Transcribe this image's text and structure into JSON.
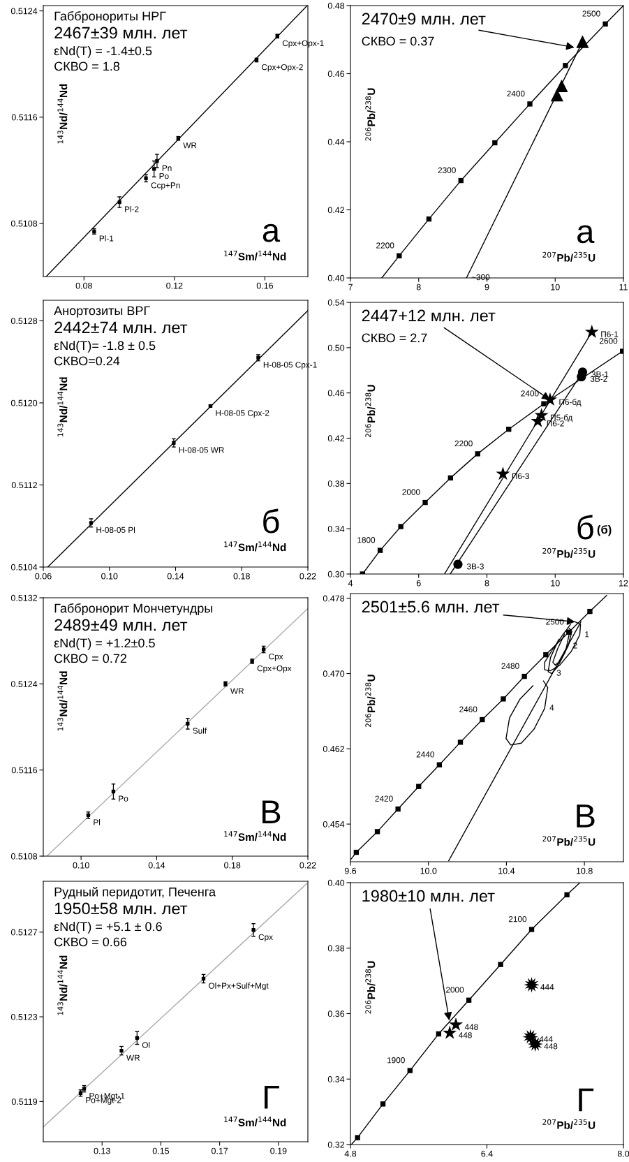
{
  "chart_data": [
    {
      "type": "scatter",
      "title": "Габбронориты НРГ",
      "xlabel": "$^{147}$Sm/$^{144}$Nd",
      "ylabel": "$^{143}$Nd/$^{144}$Nd",
      "xlim": [
        0.062,
        0.179
      ],
      "ylim": [
        0.5104,
        0.51244
      ],
      "xticks": [
        0.08,
        0.12,
        0.16
      ],
      "yticks": [
        0.5108,
        0.5116,
        0.5124
      ],
      "series": [
        {
          "type": "line",
          "color": "#000000",
          "marker": "none",
          "x": [
            0.0633,
            0.1787
          ],
          "values": [
            0.5104,
            0.51244
          ]
        },
        {
          "color": "#000000",
          "marker": "square",
          "x": [
            0.0845,
            0.0957,
            0.1074,
            0.111,
            0.1123,
            0.1217,
            0.1563,
            0.1655
          ],
          "values": [
            0.51074,
            0.51096,
            0.51114,
            0.51121,
            0.51127,
            0.51144,
            0.51203,
            0.51221
          ],
          "errors": [
            2e-05,
            4e-05,
            2.7e-05,
            6e-05,
            5e-05,
            1.4e-05,
            1.4e-05,
            1.4e-05
          ]
        }
      ],
      "annotations": [
        "2467±39 млн. лет",
        "εNd(T) = -1.4±0.5",
        "СКВО = 1.8",
        {
          "text": "Cpx+Opx-1",
          "x": 0.1655,
          "y": 0.51221
        },
        {
          "text": "Cpx+Opx-2",
          "x": 0.1563,
          "y": 0.51203
        },
        {
          "text": "WR",
          "x": 0.1217,
          "y": 0.51144
        },
        {
          "text": "Pn",
          "x": 0.1123,
          "y": 0.51127
        },
        {
          "text": "Po",
          "x": 0.111,
          "y": 0.51121
        },
        {
          "text": "Ccp+Pn",
          "x": 0.1074,
          "y": 0.51114
        },
        {
          "text": "Pl-2",
          "x": 0.0957,
          "y": 0.51096
        },
        {
          "text": "Pl-1",
          "x": 0.0845,
          "y": 0.51074
        },
        "а"
      ]
    },
    {
      "type": "scatter",
      "xlabel": "$^{207}$Pb/$^{235}$U",
      "ylabel": "$^{206}$Pb/$^{238}$U",
      "xlim": [
        7,
        11
      ],
      "ylim": [
        0.4,
        0.48
      ],
      "xticks": [
        7,
        8,
        9,
        10,
        11
      ],
      "yticks": [
        {
          "value": 0.4,
          "label": "0.40"
        },
        0.42,
        0.44,
        0.46,
        0.48
      ],
      "series": [
        {
          "type": "line",
          "color": "#000000",
          "marker": "none",
          "x": [
            7.459,
            7.714,
            8.15,
            8.619,
            9.116,
            9.629,
            10.15,
            10.735,
            11
          ],
          "values": [
            0.4,
            0.4065,
            0.4173,
            0.4286,
            0.4397,
            0.4511,
            0.4624,
            0.4746,
            0.48
          ]
        },
        {
          "color": "#000000",
          "marker": "square",
          "x": [
            7.714,
            8.15,
            8.619,
            9.116,
            9.629,
            10.15,
            10.735
          ],
          "values": [
            0.4065,
            0.4173,
            0.4286,
            0.4397,
            0.4511,
            0.4624,
            0.4746
          ]
        },
        {
          "type": "line",
          "color": "#000000",
          "marker": "none",
          "x": [
            8.7,
            10.418
          ],
          "values": [
            0.4,
            0.4701
          ]
        },
        {
          "color": "#000000",
          "marker": "triangle",
          "x": [
            10.027,
            10.095,
            10.401
          ],
          "values": [
            0.4537,
            0.4564,
            0.4694
          ]
        }
      ],
      "annotations": [
        {
          "text": "2470±9 млн. лет",
          "x": 10.282,
          "y": 0.4677
        },
        "СКВО = 0.37",
        {
          "text": "2200",
          "x": 7.714,
          "y": 0.4065
        },
        {
          "text": "2300",
          "x": 8.619,
          "y": 0.4286
        },
        {
          "text": "2400",
          "x": 9.629,
          "y": 0.4511
        },
        {
          "text": "2500",
          "x": 10.735,
          "y": 0.4746
        },
        {
          "text": "~300",
          "x": 8.7,
          "y": 0.4
        },
        "а"
      ]
    },
    {
      "type": "scatter",
      "title": "Анортозиты ВРГ",
      "xlabel": "$^{147}$Sm/$^{144}$Nd",
      "ylabel": "$^{143}$Nd/$^{144}$Nd",
      "xlim": [
        0.06,
        0.22
      ],
      "ylim": [
        0.5104,
        0.513
      ],
      "xticks": [
        0.06,
        {
          "value": 0.1,
          "label": "0.10"
        },
        0.14,
        0.18,
        0.22
      ],
      "yticks": [
        0.5104,
        0.5112,
        {
          "value": 0.512,
          "label": "0.5120"
        },
        0.5128
      ],
      "series": [
        {
          "type": "line",
          "color": "#000000",
          "marker": "none",
          "x": [
            0.0627,
            0.22
          ],
          "values": [
            0.5104,
            0.5129
          ]
        },
        {
          "color": "#000000",
          "marker": "square",
          "x": [
            0.0889,
            0.1389,
            0.1611,
            0.19
          ],
          "values": [
            0.51083,
            0.51161,
            0.51197,
            0.51244
          ],
          "errors": [
            4e-05,
            4e-05,
            1e-05,
            3e-05
          ]
        }
      ],
      "annotations": [
        "2442±74 млн. лет",
        "εNd(T)= -1.8 ± 0.5",
        "СКВО=0.24",
        {
          "text": "H-08-05 Cpx-1",
          "x": 0.19,
          "y": 0.51244
        },
        {
          "text": "H-08-05 Cpx-2",
          "x": 0.1611,
          "y": 0.51197
        },
        {
          "text": "H-08-05 WR",
          "x": 0.1389,
          "y": 0.51161
        },
        {
          "text": "H-08-05 Pl",
          "x": 0.0889,
          "y": 0.51083
        },
        "б"
      ]
    },
    {
      "type": "scatter",
      "xlabel": "$^{207}$Pb/$^{235}$U",
      "ylabel": "$^{206}$Pb/$^{238}$U",
      "xlim": [
        4,
        12
      ],
      "ylim": [
        0.3,
        0.54
      ],
      "xticks": [
        4,
        6,
        8,
        10,
        12
      ],
      "yticks": [
        {
          "value": 0.3,
          "label": "0.30"
        },
        0.34,
        0.38,
        0.42,
        0.46,
        {
          "value": 0.5,
          "label": "0.50"
        },
        0.54
      ],
      "series": [
        {
          "type": "line",
          "color": "#000000",
          "marker": "none",
          "x": [
            4.354,
            4.871,
            5.476,
            6.19,
            6.932,
            7.728,
            8.639,
            9.667,
            11.973,
            12.0
          ],
          "values": [
            0.3,
            0.3209,
            0.3419,
            0.3632,
            0.3849,
            0.4062,
            0.4279,
            0.4504,
            0.4968,
            0.4978
          ]
        },
        {
          "color": "#000000",
          "marker": "square",
          "x": [
            4.354,
            4.871,
            5.476,
            6.19,
            6.932,
            7.728,
            8.639,
            9.667,
            11.973
          ],
          "values": [
            0.3,
            0.3209,
            0.3419,
            0.3632,
            0.3849,
            0.4062,
            0.4279,
            0.4504,
            0.4968
          ]
        },
        {
          "type": "line",
          "color": "#000000",
          "marker": "none",
          "x": [
            6.755,
            11.075
          ],
          "values": [
            0.3,
            0.5138
          ]
        },
        {
          "type": "line",
          "color": "#000000",
          "marker": "none",
          "x": [
            6.925,
            10.803
          ],
          "values": [
            0.3,
            0.4784
          ]
        },
        {
          "color": "#000000",
          "marker": "star",
          "x": [
            11.075,
            9.85,
            9.599,
            9.49,
            8.469
          ],
          "values": [
            0.5138,
            0.4539,
            0.4402,
            0.435,
            0.3884
          ]
        },
        {
          "color": "#000000",
          "marker": "circle",
          "x": [
            10.803,
            10.769,
            7.15
          ],
          "values": [
            0.4784,
            0.4743,
            0.3086
          ]
        }
      ],
      "annotations": [
        {
          "text": "2447+12 млн. лет",
          "x": 9.85,
          "y": 0.4539
        },
        "СКВО = 2.7",
        {
          "text": "1800",
          "x": 4.871,
          "y": 0.3209
        },
        {
          "text": "2000",
          "x": 6.19,
          "y": 0.3632
        },
        {
          "text": "2200",
          "x": 7.728,
          "y": 0.4062
        },
        {
          "text": "2400",
          "x": 9.667,
          "y": 0.4504
        },
        {
          "text": "2600",
          "x": 11.973,
          "y": 0.4968
        },
        {
          "text": "П6-1",
          "x": 11.075,
          "y": 0.5138
        },
        {
          "text": "3В-1",
          "x": 10.803,
          "y": 0.4784
        },
        {
          "text": "3В-2",
          "x": 10.769,
          "y": 0.4743
        },
        {
          "text": "П6-бд",
          "x": 9.85,
          "y": 0.4539
        },
        {
          "text": "П5-бд",
          "x": 9.599,
          "y": 0.4402
        },
        {
          "text": "П6-2",
          "x": 9.49,
          "y": 0.435
        },
        {
          "text": "П6-3",
          "x": 8.469,
          "y": 0.3884
        },
        {
          "text": "3В-3",
          "x": 7.15,
          "y": 0.3086
        },
        "(б)",
        "б"
      ]
    },
    {
      "type": "scatter",
      "title": "Габбронорит Мончетундры",
      "xlabel": "$^{147}$Sm/$^{144}$Nd",
      "ylabel": "$^{143}$Nd/$^{144}$Nd",
      "xlim": [
        0.08,
        0.22
      ],
      "ylim": [
        0.5108,
        0.5132
      ],
      "xticks": [
        {
          "value": 0.1,
          "label": "0.10"
        },
        0.14,
        0.18,
        0.22
      ],
      "yticks": [
        0.5108,
        0.5116,
        0.5124,
        0.5132
      ],
      "series": [
        {
          "type": "line",
          "color": "#a8a8a8",
          "marker": "none",
          "x": [
            0.0819,
            0.22
          ],
          "values": [
            0.5108,
            0.5131
          ]
        },
        {
          "color": "#000000",
          "marker": "square",
          "x": [
            0.1038,
            0.1171,
            0.1564,
            0.1764,
            0.1905,
            0.1966
          ],
          "values": [
            0.51118,
            0.5114,
            0.51203,
            0.5124,
            0.51261,
            0.51272
          ],
          "errors": [
            3e-05,
            7e-05,
            5e-05,
            2e-05,
            2e-05,
            3e-05
          ]
        }
      ],
      "annotations": [
        "2489±49 млн. лет",
        "εNd(T) = +1.2±0.5",
        "СКВО = 0.72",
        {
          "text": "Cpx",
          "x": 0.1966,
          "y": 0.51272
        },
        {
          "text": "Cpx+Opx",
          "x": 0.1905,
          "y": 0.51261
        },
        {
          "text": "WR",
          "x": 0.1764,
          "y": 0.5124
        },
        {
          "text": "Sulf",
          "x": 0.1564,
          "y": 0.51203
        },
        {
          "text": "Po",
          "x": 0.1171,
          "y": 0.5114
        },
        {
          "text": "Pl",
          "x": 0.1038,
          "y": 0.51118
        },
        "В"
      ]
    },
    {
      "type": "scatter",
      "xlabel": "$^{207}$Pb/$^{235}$U",
      "ylabel": "$^{206}$Pb/$^{238}$U",
      "xlim": [
        9.6,
        11.0
      ],
      "ylim": [
        0.45,
        0.4785
      ],
      "xticks": [
        9.6,
        {
          "value": 10.0,
          "label": "10.0"
        },
        10.4,
        10.8
      ],
      "yticks": [
        0.454,
        0.462,
        {
          "value": 0.47,
          "label": "0.470"
        },
        0.478
      ],
      "series": [
        {
          "type": "line",
          "color": "#000000",
          "marker": "none",
          "x": [
            9.6,
            9.63,
            9.738,
            9.844,
            9.95,
            10.056,
            10.164,
            10.276,
            10.384,
            10.492,
            10.602,
            10.72,
            10.828,
            10.914
          ],
          "values": [
            0.4502,
            0.451,
            0.4532,
            0.4556,
            0.458,
            0.4603,
            0.4627,
            0.4651,
            0.4673,
            0.4697,
            0.472,
            0.4744,
            0.4766,
            0.4783
          ]
        },
        {
          "color": "#000000",
          "marker": "square",
          "x": [
            9.63,
            9.738,
            9.844,
            9.95,
            10.056,
            10.164,
            10.276,
            10.384,
            10.492,
            10.602,
            10.72,
            10.828
          ],
          "values": [
            0.451,
            0.4532,
            0.4556,
            0.458,
            0.4603,
            0.4627,
            0.4651,
            0.4673,
            0.4697,
            0.472,
            0.4744,
            0.4766
          ]
        },
        {
          "type": "line",
          "color": "#000000",
          "marker": "none",
          "x": [
            10.104,
            10.782
          ],
          "values": [
            0.4501,
            0.4755
          ]
        },
        {
          "type": "line",
          "color": "#000000",
          "marker": "none",
          "x": [
            10.752,
            10.78,
            10.776,
            10.734,
            10.674,
            10.626,
            10.596,
            10.596,
            10.638,
            10.692,
            10.728
          ],
          "values": [
            0.4755,
            0.4752,
            0.4741,
            0.4724,
            0.4709,
            0.4703,
            0.4704,
            0.4712,
            0.4726,
            0.4742,
            0.4752
          ]
        },
        {
          "type": "line",
          "color": "#000000",
          "marker": "none",
          "x": [
            10.722,
            10.736,
            10.716,
            10.674,
            10.65,
            10.638,
            10.662,
            10.698
          ],
          "values": [
            0.4748,
            0.4745,
            0.4729,
            0.4713,
            0.4709,
            0.4712,
            0.4726,
            0.4742
          ]
        },
        {
          "type": "line",
          "color": "#000000",
          "marker": "none",
          "x": [
            10.704,
            10.722,
            10.704,
            10.662,
            10.632,
            10.614,
            10.626,
            10.668
          ],
          "values": [
            0.4745,
            0.4742,
            0.4724,
            0.4707,
            0.47,
            0.4702,
            0.4717,
            0.4736
          ]
        },
        {
          "type": "line",
          "color": "#000000",
          "marker": "none",
          "x": [
            10.59,
            10.612,
            10.596,
            10.542,
            10.476,
            10.422,
            10.398,
            10.416,
            10.47,
            10.536
          ],
          "values": [
            0.4692,
            0.4685,
            0.4663,
            0.4641,
            0.4626,
            0.4624,
            0.4631,
            0.4653,
            0.4673,
            0.4687
          ]
        }
      ],
      "annotations": [
        {
          "text": "2501±5.6 млн. лет",
          "x": 10.752,
          "y": 0.4755
        },
        {
          "text": "2420",
          "x": 9.844,
          "y": 0.4556
        },
        {
          "text": "2440",
          "x": 10.056,
          "y": 0.4603
        },
        {
          "text": "2460",
          "x": 10.276,
          "y": 0.4651
        },
        {
          "text": "2480",
          "x": 10.492,
          "y": 0.4697
        },
        {
          "text": "2500",
          "x": 10.72,
          "y": 0.4744
        },
        {
          "text": "1",
          "x": 10.776,
          "y": 0.4741
        },
        {
          "text": "2",
          "x": 10.716,
          "y": 0.4729
        },
        {
          "text": "3",
          "x": 10.632,
          "y": 0.47
        },
        {
          "text": "4",
          "x": 10.596,
          "y": 0.4663
        },
        "В"
      ]
    },
    {
      "type": "scatter",
      "title": "Рудный перидотит, Печенга",
      "xlabel": "$^{147}$Sm/$^{144}$Nd",
      "ylabel": "$^{143}$Nd/$^{144}$Nd",
      "xlim": [
        0.11,
        0.2
      ],
      "ylim": [
        0.51171,
        0.51294
      ],
      "xticks": [
        0.13,
        0.15,
        0.17,
        0.19
      ],
      "yticks": [
        0.5119,
        0.5123,
        0.5127
      ],
      "series": [
        {
          "type": "line",
          "color": "#a8a8a8",
          "marker": "none",
          "x": [
            0.11,
            0.1997
          ],
          "values": [
            0.51178,
            0.51293
          ]
        },
        {
          "color": "#000000",
          "marker": "square",
          "x": [
            0.1227,
            0.1239,
            0.1366,
            0.1419,
            0.1645,
            0.1815
          ],
          "values": [
            0.51194,
            0.51196,
            0.51214,
            0.5122,
            0.51248,
            0.51271
          ],
          "errors": [
            1.5e-05,
            1.5e-05,
            2e-05,
            3e-05,
            2e-05,
            3e-05
          ]
        }
      ],
      "annotations": [
        "1950±58 млн. лет",
        "εNd(T) = +5.1 ± 0.6",
        "СКВО = 0.66",
        {
          "text": "Cpx",
          "x": 0.1815,
          "y": 0.51271
        },
        {
          "text": "Ol+Px+Sulf+Mgt",
          "x": 0.1645,
          "y": 0.51248
        },
        {
          "text": "Ol",
          "x": 0.1419,
          "y": 0.5122
        },
        {
          "text": "WR",
          "x": 0.1366,
          "y": 0.51214
        },
        {
          "text": "Po+Mgt-2",
          "x": 0.1227,
          "y": 0.51194
        },
        {
          "text": "Po+Mgt-1",
          "x": 0.1239,
          "y": 0.51196
        },
        "Г"
      ]
    },
    {
      "type": "scatter",
      "xlabel": "$^{207}$Pb/$^{235}$U",
      "ylabel": "$^{206}$Pb/$^{238}$U",
      "xlim": [
        4.8,
        8.0
      ],
      "ylim": [
        0.32,
        0.4
      ],
      "xticks": [
        4.8,
        6.4,
        {
          "value": 8.0,
          "label": "8.0"
        }
      ],
      "yticks": [
        0.32,
        0.34,
        0.36,
        0.38,
        {
          "value": 0.4,
          "label": "0.40"
        }
      ],
      "series": [
        {
          "type": "line",
          "color": "#000000",
          "marker": "none",
          "x": [
            4.81,
            4.883,
            5.181,
            5.498,
            5.834,
            6.188,
            6.56,
            6.924,
            7.338,
            7.49
          ],
          "values": [
            0.32,
            0.3221,
            0.3324,
            0.3426,
            0.3538,
            0.3641,
            0.375,
            0.3857,
            0.3963,
            0.4
          ]
        },
        {
          "color": "#000000",
          "marker": "square",
          "x": [
            4.883,
            5.181,
            5.498,
            5.834,
            6.188,
            6.56,
            6.924,
            7.338
          ],
          "values": [
            0.3221,
            0.3324,
            0.3426,
            0.3538,
            0.3641,
            0.375,
            0.3857,
            0.3963
          ]
        },
        {
          "color": "#000000",
          "marker": "star",
          "x": [
            6.036,
            5.964
          ],
          "values": [
            0.3566,
            0.3541
          ]
        },
        {
          "color": "#000000",
          "marker": "cross",
          "x": [
            6.924,
            6.91,
            6.966
          ],
          "values": [
            0.3688,
            0.3529,
            0.3507
          ]
        }
      ],
      "annotations": [
        {
          "text": "1980±10 млн. лет",
          "x": 5.959,
          "y": 0.3579
        },
        {
          "text": "1900",
          "x": 5.498,
          "y": 0.3426
        },
        {
          "text": "2000",
          "x": 6.188,
          "y": 0.3641
        },
        {
          "text": "2100",
          "x": 6.924,
          "y": 0.3857
        },
        {
          "text": "448",
          "x": 6.036,
          "y": 0.3566
        },
        {
          "text": "448",
          "x": 5.964,
          "y": 0.3541
        },
        {
          "text": "444",
          "x": 6.924,
          "y": 0.3688
        },
        {
          "text": "444",
          "x": 6.91,
          "y": 0.3529
        },
        {
          "text": "448",
          "x": 6.966,
          "y": 0.3507
        },
        "Г"
      ]
    }
  ]
}
